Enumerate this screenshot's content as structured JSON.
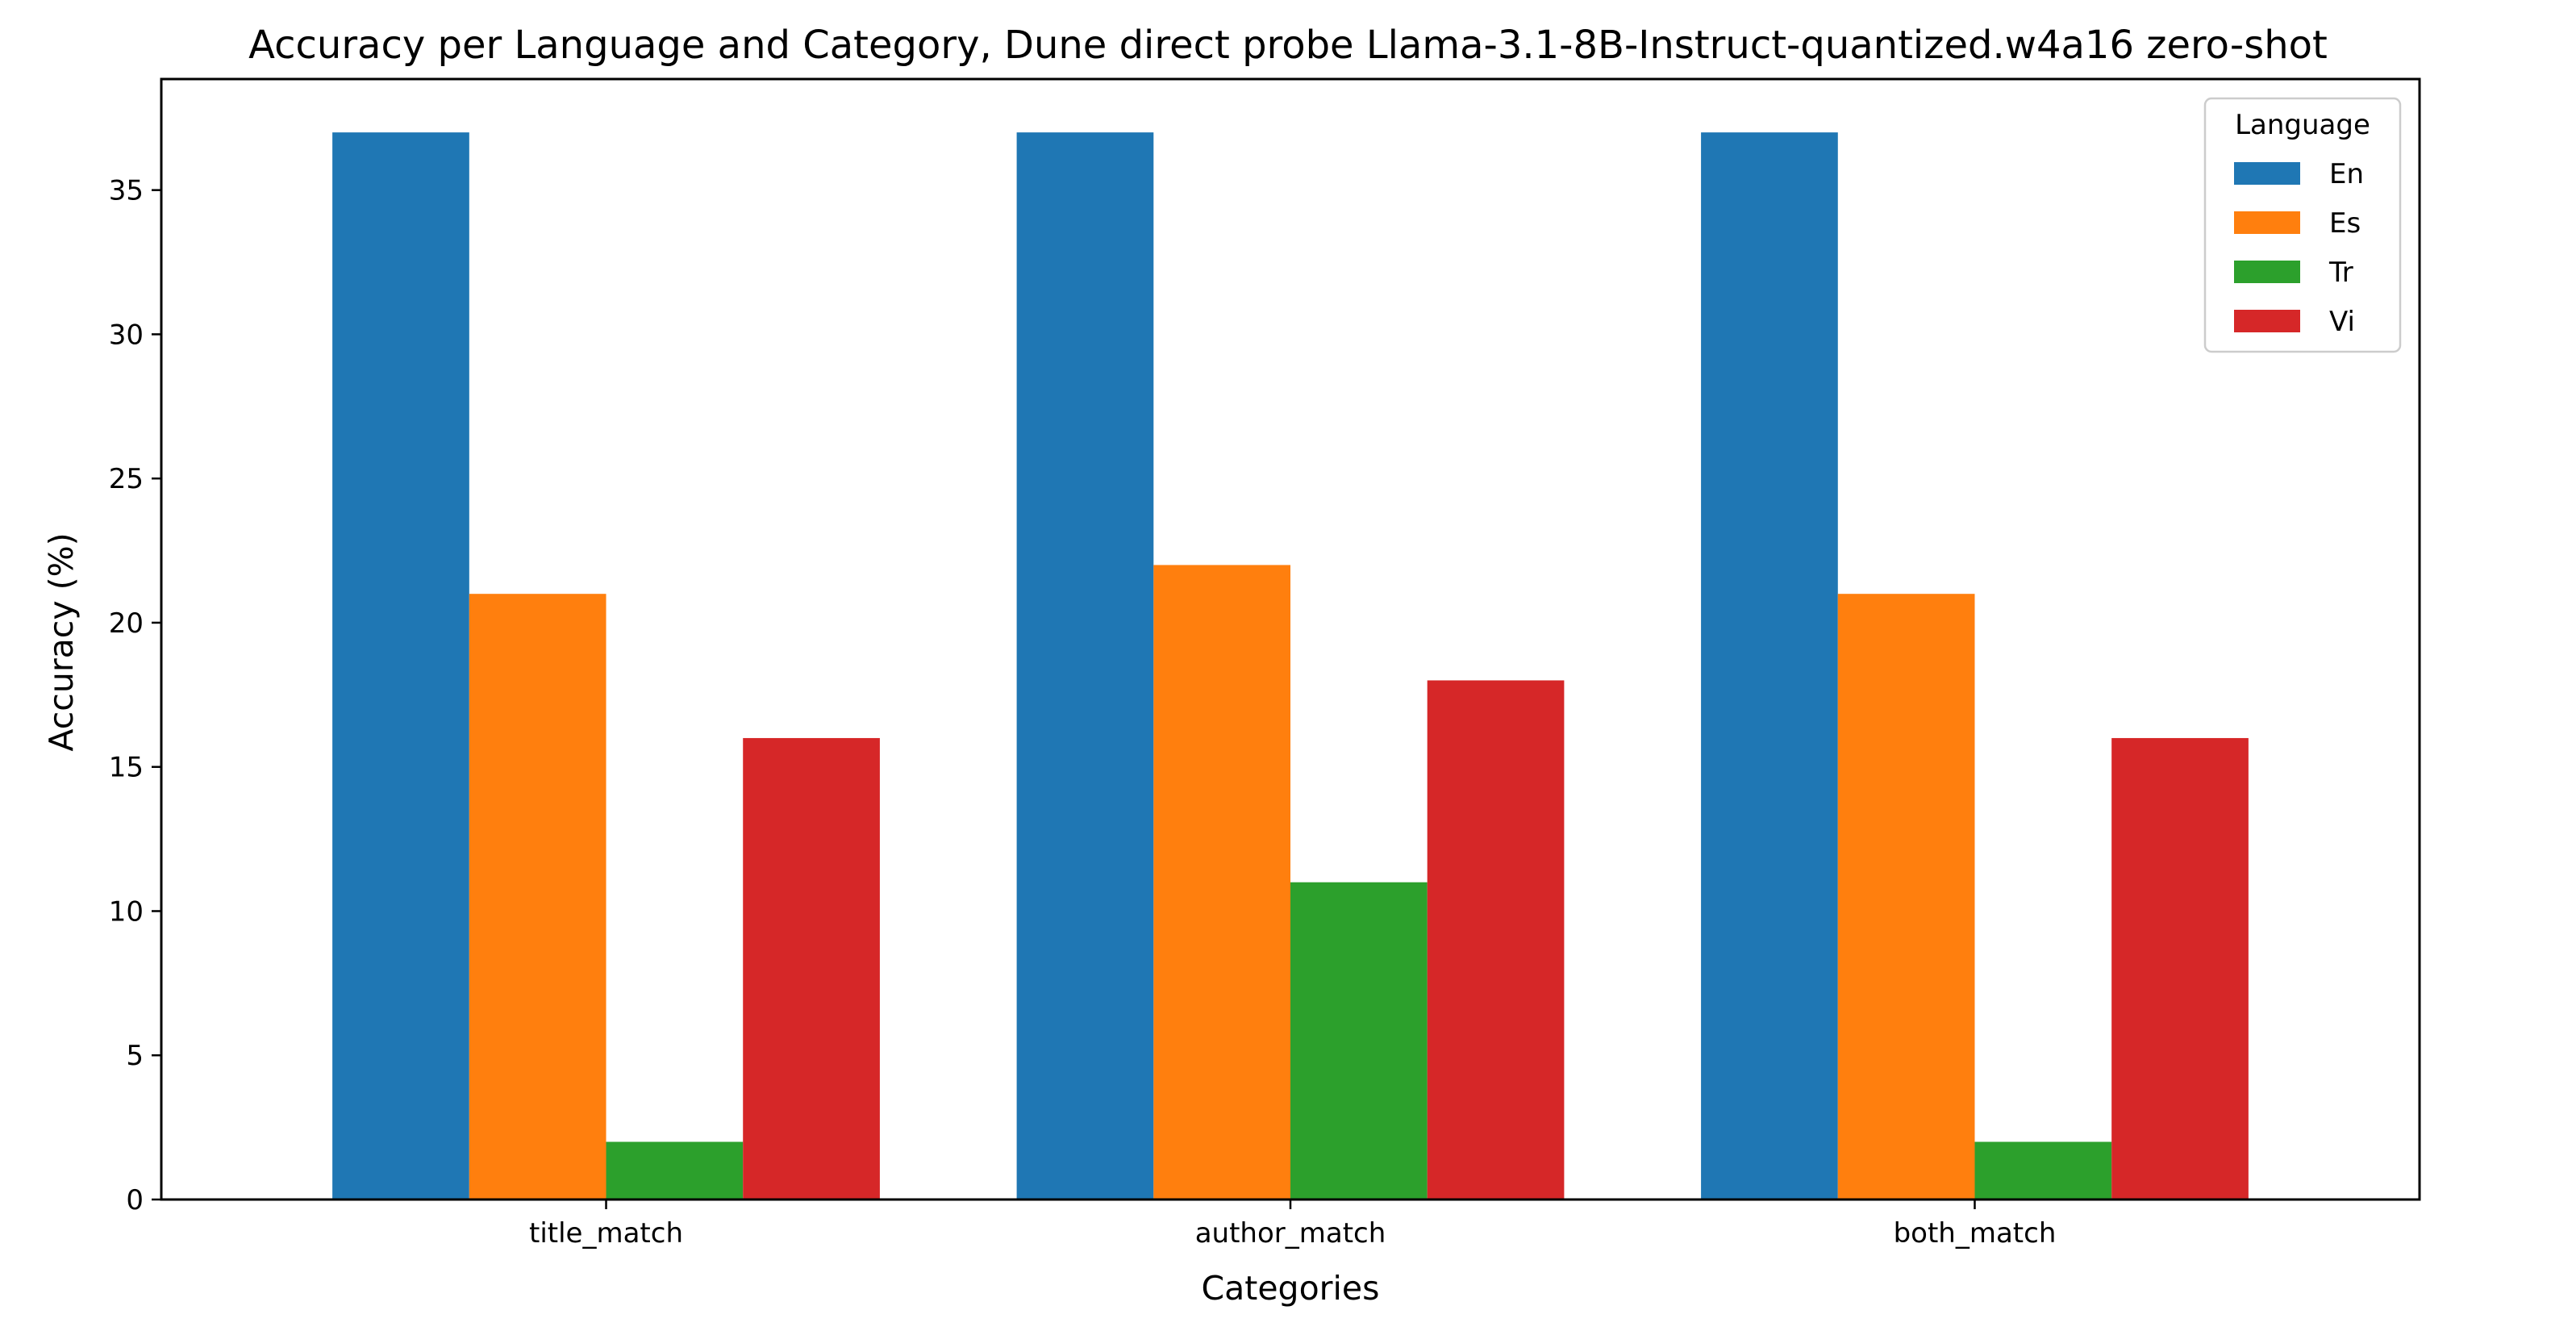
{
  "chart_data": {
    "type": "bar",
    "title": "Accuracy per Language and Category, Dune direct probe Llama-3.1-8B-Instruct-quantized.w4a16 zero-shot",
    "xlabel": "Categories",
    "ylabel": "Accuracy (%)",
    "categories": [
      "title_match",
      "author_match",
      "both_match"
    ],
    "ylim": [
      0,
      38.85
    ],
    "yticks": [
      0,
      5,
      10,
      15,
      20,
      25,
      30,
      35
    ],
    "grid": false,
    "legend": {
      "title": "Language",
      "placement": "top-right"
    },
    "series": [
      {
        "name": "En",
        "color": "#1f77b4",
        "values": [
          37,
          37,
          37
        ]
      },
      {
        "name": "Es",
        "color": "#ff7f0e",
        "values": [
          21,
          22,
          21
        ]
      },
      {
        "name": "Tr",
        "color": "#2ca02c",
        "values": [
          2,
          11,
          2
        ]
      },
      {
        "name": "Vi",
        "color": "#d62728",
        "values": [
          16,
          18,
          16
        ]
      }
    ]
  }
}
